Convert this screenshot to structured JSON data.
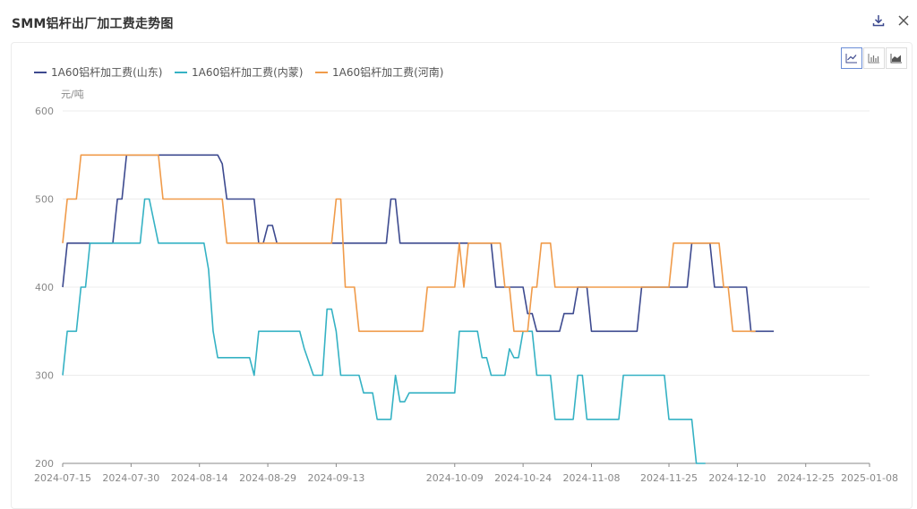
{
  "dialog": {
    "title": "SMM铝杆出厂加工费走势图",
    "download_icon": "download-icon",
    "close_icon": "close-icon"
  },
  "toolbar": {
    "chart_types": [
      {
        "name": "line-chart-icon",
        "active": true
      },
      {
        "name": "bar-chart-icon",
        "active": false
      },
      {
        "name": "area-chart-icon",
        "active": false
      }
    ]
  },
  "colors": {
    "series": [
      "#3d4a8f",
      "#35b2c4",
      "#f09b4a"
    ],
    "grid": "#ececec",
    "axis": "#8a8a8a"
  },
  "chart_data": {
    "type": "line",
    "unit_label": "元/吨",
    "ylim": [
      200,
      600
    ],
    "yticks": [
      200,
      300,
      400,
      500,
      600
    ],
    "xlim": [
      "2024-07-15",
      "2025-01-08"
    ],
    "xticks": [
      "2024-07-15",
      "2024-07-30",
      "2024-08-14",
      "2024-08-29",
      "2024-09-13",
      "2024-10-09",
      "2024-10-24",
      "2024-11-08",
      "2024-11-25",
      "2024-12-10",
      "2024-12-25",
      "2025-01-08"
    ],
    "series": [
      {
        "name": "1A60铝杆加工费(山东)",
        "points": [
          [
            "2024-07-15",
            400
          ],
          [
            "2024-07-16",
            450
          ],
          [
            "2024-07-26",
            450
          ],
          [
            "2024-07-27",
            500
          ],
          [
            "2024-07-28",
            500
          ],
          [
            "2024-07-29",
            550
          ],
          [
            "2024-08-18",
            550
          ],
          [
            "2024-08-19",
            540
          ],
          [
            "2024-08-20",
            500
          ],
          [
            "2024-08-26",
            500
          ],
          [
            "2024-08-27",
            450
          ],
          [
            "2024-08-28",
            450
          ],
          [
            "2024-08-29",
            470
          ],
          [
            "2024-08-30",
            470
          ],
          [
            "2024-08-31",
            450
          ],
          [
            "2024-09-24",
            450
          ],
          [
            "2024-09-25",
            500
          ],
          [
            "2024-09-26",
            500
          ],
          [
            "2024-09-27",
            450
          ],
          [
            "2024-10-17",
            450
          ],
          [
            "2024-10-18",
            400
          ],
          [
            "2024-10-24",
            400
          ],
          [
            "2024-10-25",
            370
          ],
          [
            "2024-10-26",
            370
          ],
          [
            "2024-10-27",
            350
          ],
          [
            "2024-11-01",
            350
          ],
          [
            "2024-11-02",
            370
          ],
          [
            "2024-11-04",
            370
          ],
          [
            "2024-11-05",
            400
          ],
          [
            "2024-11-07",
            400
          ],
          [
            "2024-11-08",
            350
          ],
          [
            "2024-11-18",
            350
          ],
          [
            "2024-11-19",
            400
          ],
          [
            "2024-11-29",
            400
          ],
          [
            "2024-11-30",
            450
          ],
          [
            "2024-12-04",
            450
          ],
          [
            "2024-12-05",
            400
          ],
          [
            "2024-12-11",
            400
          ],
          [
            "2024-12-12",
            400
          ],
          [
            "2024-12-13",
            350
          ],
          [
            "2024-12-18",
            350
          ]
        ]
      },
      {
        "name": "1A60铝杆加工费(内蒙)",
        "points": [
          [
            "2024-07-15",
            300
          ],
          [
            "2024-07-16",
            350
          ],
          [
            "2024-07-18",
            350
          ],
          [
            "2024-07-19",
            400
          ],
          [
            "2024-07-20",
            400
          ],
          [
            "2024-07-21",
            450
          ],
          [
            "2024-08-01",
            450
          ],
          [
            "2024-08-02",
            500
          ],
          [
            "2024-08-03",
            500
          ],
          [
            "2024-08-05",
            450
          ],
          [
            "2024-08-15",
            450
          ],
          [
            "2024-08-16",
            420
          ],
          [
            "2024-08-17",
            350
          ],
          [
            "2024-08-18",
            320
          ],
          [
            "2024-08-25",
            320
          ],
          [
            "2024-08-26",
            300
          ],
          [
            "2024-08-27",
            350
          ],
          [
            "2024-09-05",
            350
          ],
          [
            "2024-09-06",
            330
          ],
          [
            "2024-09-08",
            300
          ],
          [
            "2024-09-10",
            300
          ],
          [
            "2024-09-11",
            375
          ],
          [
            "2024-09-12",
            375
          ],
          [
            "2024-09-13",
            350
          ],
          [
            "2024-09-14",
            300
          ],
          [
            "2024-09-18",
            300
          ],
          [
            "2024-09-19",
            280
          ],
          [
            "2024-09-21",
            280
          ],
          [
            "2024-09-22",
            250
          ],
          [
            "2024-09-25",
            250
          ],
          [
            "2024-09-26",
            300
          ],
          [
            "2024-09-27",
            270
          ],
          [
            "2024-09-28",
            270
          ],
          [
            "2024-09-29",
            280
          ],
          [
            "2024-10-01",
            280
          ],
          [
            "2024-10-02",
            280
          ],
          [
            "2024-10-09",
            280
          ],
          [
            "2024-10-10",
            350
          ],
          [
            "2024-10-14",
            350
          ],
          [
            "2024-10-15",
            320
          ],
          [
            "2024-10-16",
            320
          ],
          [
            "2024-10-17",
            300
          ],
          [
            "2024-10-20",
            300
          ],
          [
            "2024-10-21",
            330
          ],
          [
            "2024-10-22",
            320
          ],
          [
            "2024-10-23",
            320
          ],
          [
            "2024-10-24",
            350
          ],
          [
            "2024-10-26",
            350
          ],
          [
            "2024-10-27",
            300
          ],
          [
            "2024-10-30",
            300
          ],
          [
            "2024-10-31",
            250
          ],
          [
            "2024-11-04",
            250
          ],
          [
            "2024-11-05",
            300
          ],
          [
            "2024-11-06",
            300
          ],
          [
            "2024-11-07",
            250
          ],
          [
            "2024-11-14",
            250
          ],
          [
            "2024-11-15",
            300
          ],
          [
            "2024-11-24",
            300
          ],
          [
            "2024-11-25",
            250
          ],
          [
            "2024-11-30",
            250
          ],
          [
            "2024-12-01",
            200
          ],
          [
            "2024-12-03",
            200
          ]
        ]
      },
      {
        "name": "1A60铝杆加工费(河南)",
        "points": [
          [
            "2024-07-15",
            450
          ],
          [
            "2024-07-16",
            500
          ],
          [
            "2024-07-18",
            500
          ],
          [
            "2024-07-19",
            550
          ],
          [
            "2024-08-05",
            550
          ],
          [
            "2024-08-06",
            500
          ],
          [
            "2024-08-19",
            500
          ],
          [
            "2024-08-20",
            450
          ],
          [
            "2024-09-05",
            450
          ],
          [
            "2024-09-06",
            450
          ],
          [
            "2024-09-12",
            450
          ],
          [
            "2024-09-13",
            500
          ],
          [
            "2024-09-14",
            500
          ],
          [
            "2024-09-15",
            400
          ],
          [
            "2024-09-17",
            400
          ],
          [
            "2024-09-18",
            350
          ],
          [
            "2024-10-02",
            350
          ],
          [
            "2024-10-03",
            400
          ],
          [
            "2024-10-09",
            400
          ],
          [
            "2024-10-10",
            450
          ],
          [
            "2024-10-11",
            400
          ],
          [
            "2024-10-12",
            450
          ],
          [
            "2024-10-19",
            450
          ],
          [
            "2024-10-20",
            400
          ],
          [
            "2024-10-21",
            400
          ],
          [
            "2024-10-22",
            350
          ],
          [
            "2024-10-25",
            350
          ],
          [
            "2024-10-26",
            400
          ],
          [
            "2024-10-27",
            400
          ],
          [
            "2024-10-28",
            450
          ],
          [
            "2024-10-30",
            450
          ],
          [
            "2024-10-31",
            400
          ],
          [
            "2024-11-18",
            400
          ],
          [
            "2024-11-19",
            400
          ],
          [
            "2024-11-25",
            400
          ],
          [
            "2024-11-26",
            450
          ],
          [
            "2024-12-06",
            450
          ],
          [
            "2024-12-07",
            400
          ],
          [
            "2024-12-08",
            400
          ],
          [
            "2024-12-09",
            350
          ],
          [
            "2024-12-14",
            350
          ]
        ]
      }
    ]
  }
}
